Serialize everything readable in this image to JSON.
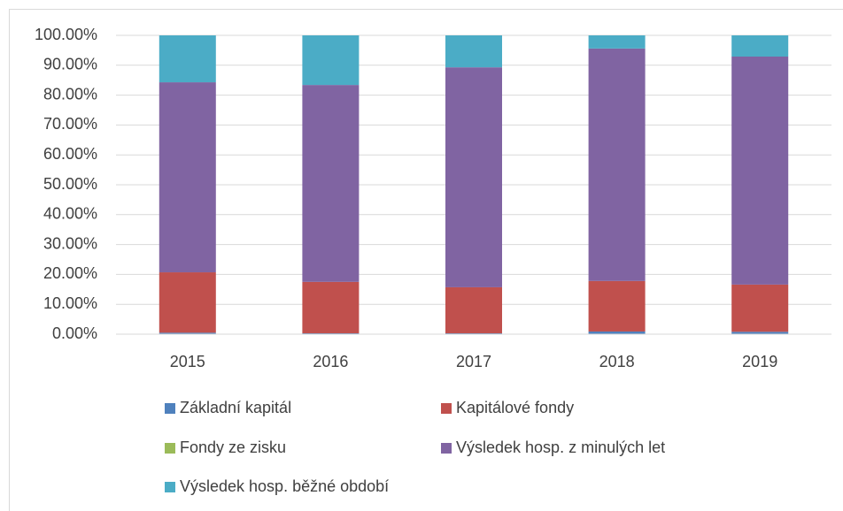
{
  "chart_data": {
    "type": "stacked_bar",
    "categories": [
      "2015",
      "2016",
      "2017",
      "2018",
      "2019"
    ],
    "series": [
      {
        "name": "Základní kapitál",
        "color": "#4f81bd",
        "values": [
          0.5,
          0.3,
          0.3,
          0.9,
          0.8
        ]
      },
      {
        "name": "Kapitálové fondy",
        "color": "#c0504d",
        "values": [
          20.2,
          17.2,
          15.4,
          16.9,
          15.8
        ]
      },
      {
        "name": "Fondy ze zisku",
        "color": "#9bbb59",
        "values": [
          0,
          0,
          0,
          0,
          0
        ]
      },
      {
        "name": "Výsledek hosp. z minulých let",
        "color": "#8064a2",
        "values": [
          63.6,
          65.9,
          73.6,
          77.8,
          76.3
        ]
      },
      {
        "name": "Výsledek hosp. běžné období",
        "color": "#4bacc6",
        "values": [
          15.7,
          16.6,
          10.7,
          4.4,
          7.1
        ]
      }
    ],
    "ylim": [
      0,
      100
    ],
    "yticks": [
      {
        "value": 0,
        "label": "0.00%"
      },
      {
        "value": 10,
        "label": "10.00%"
      },
      {
        "value": 20,
        "label": "20.00%"
      },
      {
        "value": 30,
        "label": "30.00%"
      },
      {
        "value": 40,
        "label": "40.00%"
      },
      {
        "value": 50,
        "label": "50.00%"
      },
      {
        "value": 60,
        "label": "60.00%"
      },
      {
        "value": 70,
        "label": "70.00%"
      },
      {
        "value": 80,
        "label": "80.00%"
      },
      {
        "value": 90,
        "label": "90.00%"
      },
      {
        "value": 100,
        "label": "100.00%"
      }
    ],
    "grid": true,
    "legend": "bottom"
  }
}
